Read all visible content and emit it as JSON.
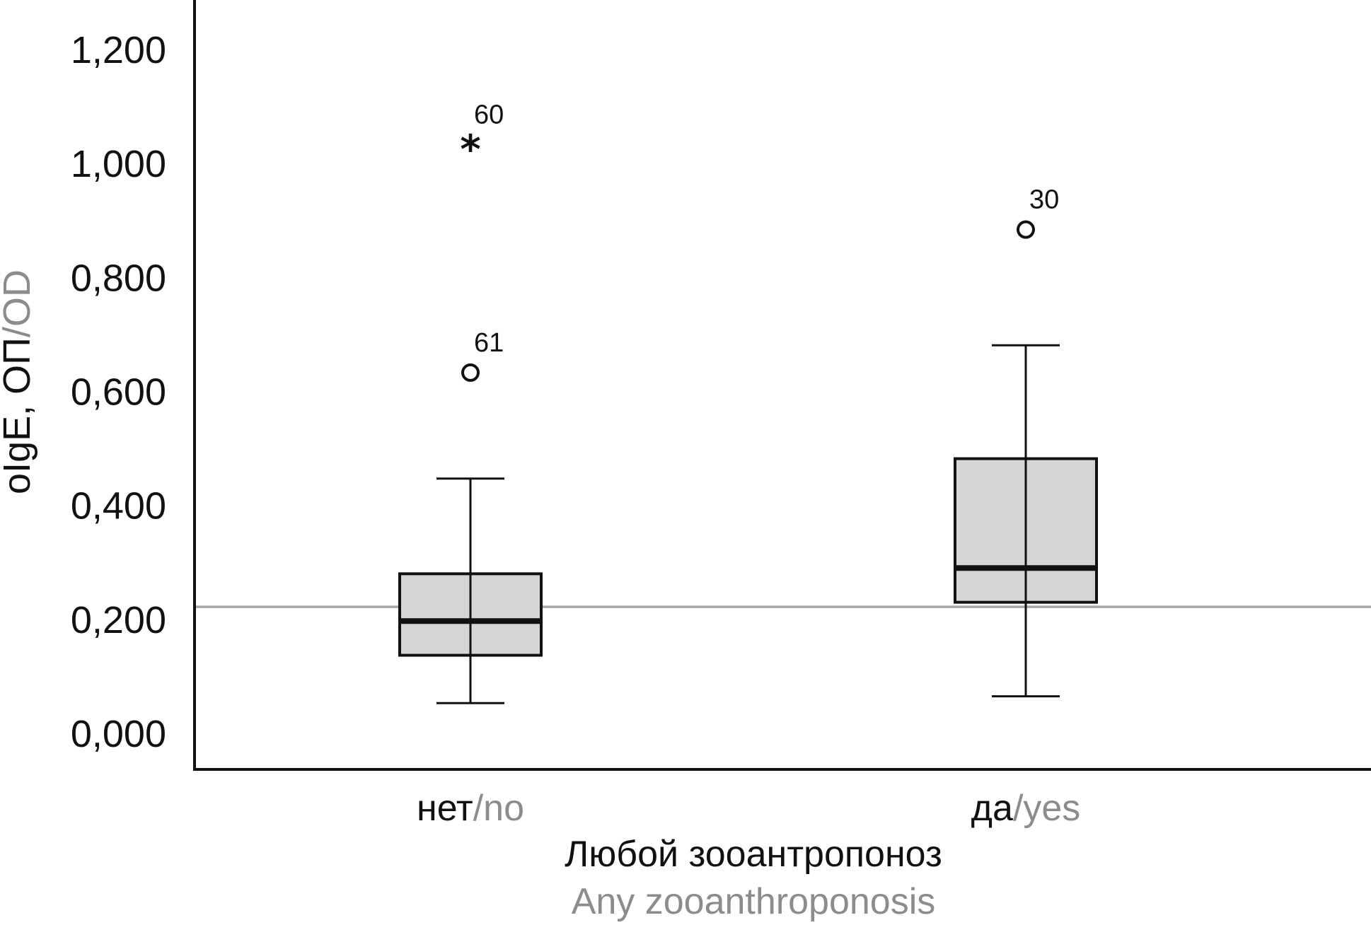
{
  "chart_data": {
    "type": "box",
    "ylabel": {
      "ru": "oIgE, ОП",
      "separator": "/",
      "en": "OD"
    },
    "xlabel": {
      "ru": "Любой зооантропоноз",
      "en": "Any zooanthroponosis"
    },
    "y_ticks": [
      "0,000",
      "0,200",
      "0,400",
      "0,600",
      "0,800",
      "1,000",
      "1,200"
    ],
    "ylim": [
      0,
      1.2
    ],
    "reference_line": 0.222,
    "categories": [
      {
        "ru": "нет",
        "separator": "/",
        "en": "no"
      },
      {
        "ru": "да",
        "separator": "/",
        "en": "yes"
      }
    ],
    "boxes": [
      {
        "whisker_low": 0.053,
        "q1": 0.137,
        "median": 0.197,
        "q3": 0.28,
        "whisker_high": 0.447,
        "outliers": [
          {
            "value": 0.633,
            "label": "61",
            "marker": "circle"
          },
          {
            "value": 1.033,
            "label": "60",
            "marker": "star"
          }
        ]
      },
      {
        "whisker_low": 0.065,
        "q1": 0.23,
        "median": 0.29,
        "q3": 0.482,
        "whisker_high": 0.681,
        "outliers": [
          {
            "value": 0.884,
            "label": "30",
            "marker": "circle"
          }
        ]
      }
    ],
    "colors": {
      "box_fill": "#d4d5d7",
      "line": "#111111",
      "reference": "#a8a8a8",
      "secondary_text": "#8c8c8c"
    }
  }
}
